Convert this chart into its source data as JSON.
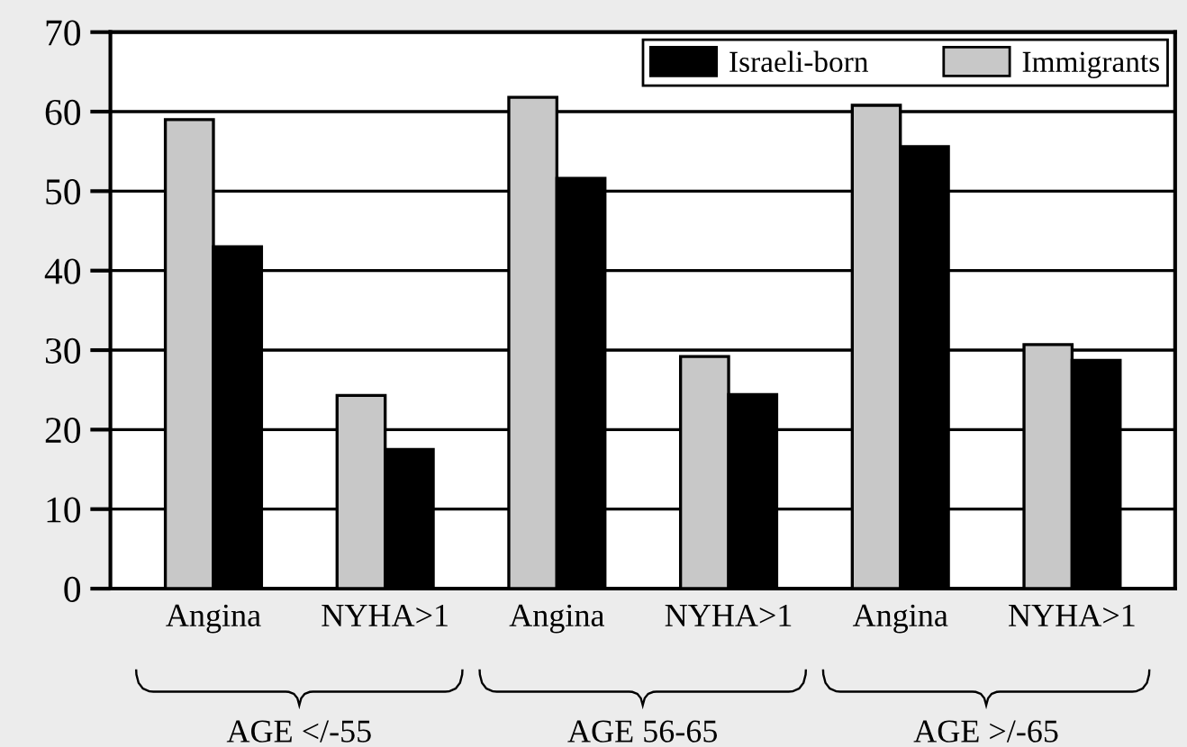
{
  "chart_data": {
    "type": "bar",
    "categories": [
      "Angina",
      "NYHA>1",
      "Angina",
      "NYHA>1",
      "Angina",
      "NYHA>1"
    ],
    "series": [
      {
        "name": "Immigrants",
        "color": "#c8c8c8",
        "values": [
          59,
          24.3,
          61.8,
          29.2,
          60.8,
          30.7
        ]
      },
      {
        "name": "Israeli-born",
        "color": "#000000",
        "values": [
          43,
          17.5,
          51.6,
          24.4,
          55.6,
          28.7
        ]
      }
    ],
    "annotations": [
      "AGE </-55",
      "AGE 56-65",
      "AGE >/-65"
    ],
    "ylim": [
      0,
      70
    ],
    "yticks": [
      0,
      10,
      20,
      30,
      40,
      50,
      60,
      70
    ],
    "grid": "y",
    "legend": "top right"
  }
}
